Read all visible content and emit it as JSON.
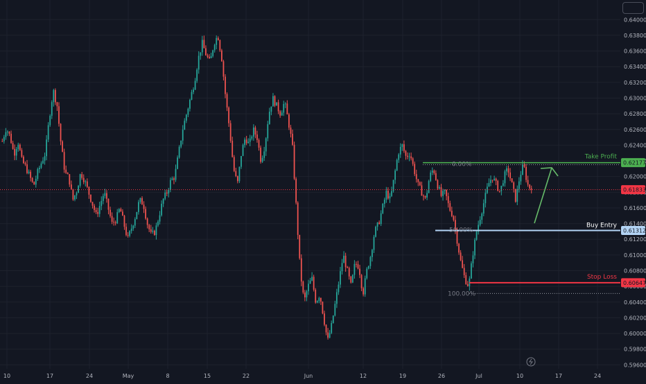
{
  "colors": {
    "bg": "#131722",
    "grid": "#1e222d",
    "up": "#26a69a",
    "down": "#ef5350",
    "take_profit": "#4caf50",
    "buy_entry": "#b3d4f5",
    "stop_loss": "#f23645",
    "current": "#f23645",
    "arrow": "#66bb6a"
  },
  "labels": {
    "take_profit": "Take Profit",
    "buy_entry": "Buy Entry",
    "stop_loss": "Stop Loss",
    "fib_top": "0.00%",
    "fib_mid": "50.00%",
    "fib_bottom": "100.00%"
  },
  "chart_data": {
    "type": "candlestick",
    "symbol_note": "",
    "y_ticks": [
      "0.64000",
      "0.63800",
      "0.63600",
      "0.63400",
      "0.63200",
      "0.63000",
      "0.62800",
      "0.62600",
      "0.62400",
      "0.62200",
      "0.62000",
      "0.61800",
      "0.61600",
      "0.61400",
      "0.61200",
      "0.61000",
      "0.60800",
      "0.60600",
      "0.60400",
      "0.60200",
      "0.60000",
      "0.59800",
      "0.59600"
    ],
    "x_ticks": [
      "10",
      "17",
      "24",
      "May",
      "8",
      "15",
      "22",
      "Jun",
      "12",
      "19",
      "26",
      "Jul",
      "10",
      "17",
      "24"
    ],
    "ylim": [
      0.5955,
      0.6425
    ],
    "price_levels": {
      "take_profit": 0.62177,
      "current": 0.61833,
      "buy_entry": 0.61312,
      "stop_loss": 0.60647,
      "fib_100": 0.6051
    },
    "price_badges": {
      "take_profit": "0.62177",
      "current": "0.61833",
      "buy_entry": "0.61312",
      "stop_loss": "0.60647"
    },
    "close_path": [
      0.6245,
      0.6262,
      0.6251,
      0.6228,
      0.6245,
      0.622,
      0.6212,
      0.62,
      0.6188,
      0.6205,
      0.6218,
      0.623,
      0.6275,
      0.631,
      0.629,
      0.624,
      0.6205,
      0.6198,
      0.617,
      0.6182,
      0.6205,
      0.6195,
      0.618,
      0.6165,
      0.615,
      0.6165,
      0.618,
      0.616,
      0.614,
      0.6145,
      0.616,
      0.614,
      0.612,
      0.6135,
      0.615,
      0.617,
      0.6165,
      0.614,
      0.6125,
      0.613,
      0.615,
      0.617,
      0.618,
      0.6195,
      0.62,
      0.623,
      0.626,
      0.628,
      0.63,
      0.632,
      0.635,
      0.637,
      0.6355,
      0.6345,
      0.637,
      0.638,
      0.635,
      0.63,
      0.626,
      0.621,
      0.619,
      0.623,
      0.625,
      0.624,
      0.626,
      0.625,
      0.622,
      0.624,
      0.628,
      0.63,
      0.629,
      0.628,
      0.6295,
      0.627,
      0.624,
      0.616,
      0.608,
      0.604,
      0.606,
      0.607,
      0.604,
      0.605,
      0.602,
      0.599,
      0.601,
      0.604,
      0.607,
      0.61,
      0.608,
      0.606,
      0.609,
      0.6085,
      0.605,
      0.608,
      0.61,
      0.613,
      0.614,
      0.616,
      0.618,
      0.617,
      0.62,
      0.623,
      0.624,
      0.6225,
      0.623,
      0.621,
      0.619,
      0.618,
      0.617,
      0.62,
      0.621,
      0.619,
      0.6175,
      0.618,
      0.616,
      0.615,
      0.612,
      0.609,
      0.607,
      0.606,
      0.61,
      0.613,
      0.615,
      0.617,
      0.619,
      0.62,
      0.619,
      0.618,
      0.62,
      0.621,
      0.619,
      0.617,
      0.62,
      0.6215,
      0.619,
      0.6183
    ]
  }
}
